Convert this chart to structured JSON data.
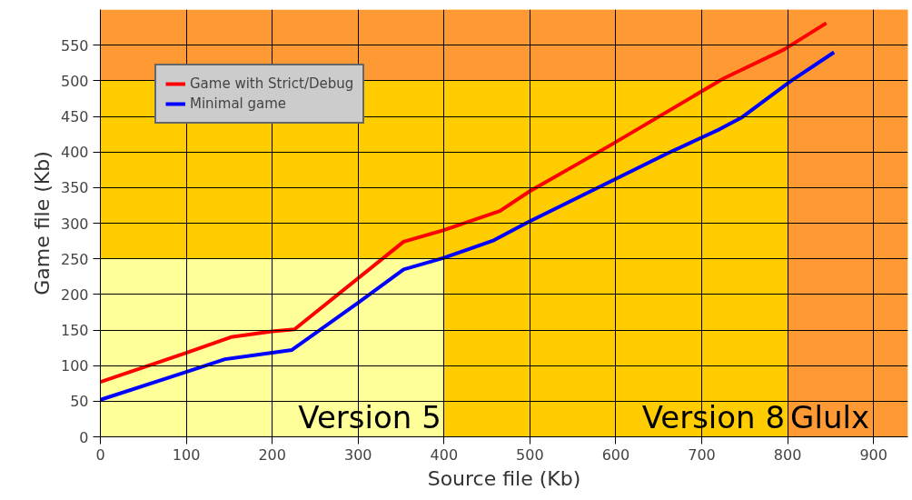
{
  "chart_data": {
    "type": "line",
    "xlabel": "Source file (Kb)",
    "ylabel": "Game file (Kb)",
    "xlim": [
      0,
      940
    ],
    "ylim": [
      0,
      600
    ],
    "xticks": [
      0,
      100,
      200,
      300,
      400,
      500,
      600,
      700,
      800,
      900
    ],
    "yticks": [
      0,
      50,
      100,
      150,
      200,
      250,
      300,
      350,
      400,
      450,
      500,
      550
    ],
    "grid": true,
    "legend": "top left",
    "line_style": "solid",
    "marker": "none",
    "series": [
      {
        "name": "Game with Strict/Debug",
        "color": "#ff0000",
        "x": [
          0,
          100,
          152,
          200,
          226,
          353,
          399,
          465,
          500,
          593,
          725,
          796,
          845
        ],
        "values": [
          77,
          118,
          140,
          148,
          151,
          274,
          290,
          317,
          345,
          409,
          503,
          544,
          581
        ]
      },
      {
        "name": "Minimal game",
        "color": "#0000ff",
        "x": [
          0,
          100,
          145,
          200,
          223,
          301,
          353,
          399,
          458,
          497,
          660,
          721,
          746,
          803,
          854
        ],
        "values": [
          52,
          91,
          109,
          118,
          122,
          189,
          235,
          251,
          276,
          301,
          398,
          432,
          448,
          499,
          540
        ]
      }
    ],
    "bands": [
      {
        "axis": "x",
        "from": 0,
        "to": 400,
        "label": "Version 5",
        "color": "#ffff99"
      },
      {
        "axis": "y",
        "from": 250,
        "to": 500,
        "color": "#ffcc00"
      },
      {
        "axis": "x",
        "from": 400,
        "to": 800,
        "label": "Version 8",
        "color": "#ffcc00"
      },
      {
        "axis": "x",
        "from": 800,
        "to": 940,
        "label": "Glulx",
        "color": "#ff9933"
      },
      {
        "axis": "y",
        "from": 500,
        "to": 600,
        "color": "#ff9933"
      }
    ]
  }
}
